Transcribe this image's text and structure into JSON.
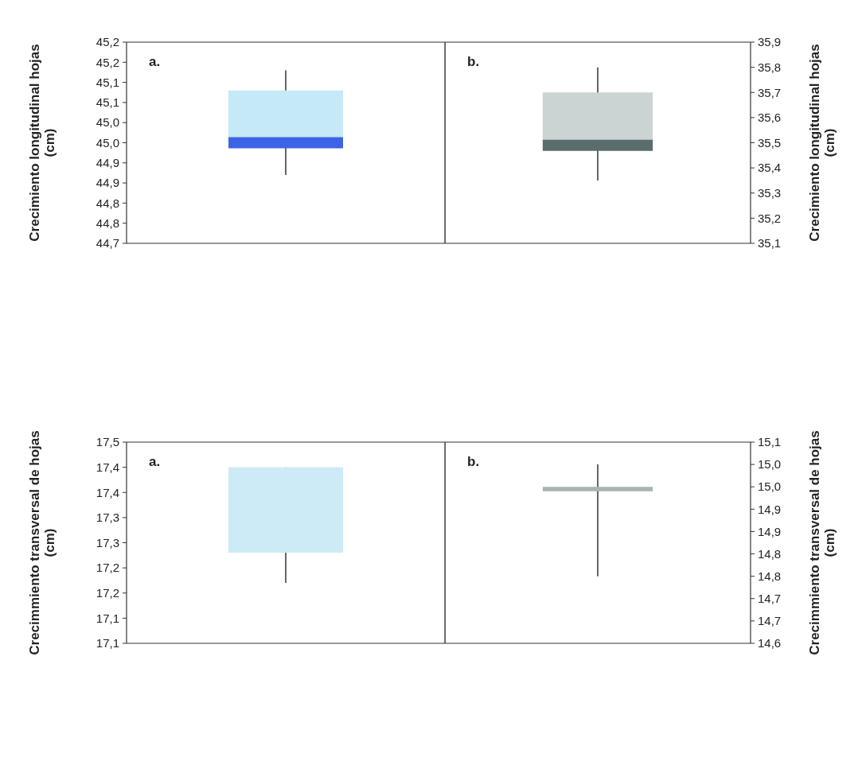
{
  "chart_data": [
    {
      "type": "box",
      "categories": [
        null
      ],
      "ylabel": "Crecimiento longitudinal hojas (cm)",
      "annotations": [
        "a."
      ],
      "ylim": [
        44.7,
        45.2
      ],
      "yticks": [
        {
          "value": 44.7,
          "label": "44,7"
        },
        {
          "value": 44.75,
          "label": "44,8"
        },
        {
          "value": 44.8,
          "label": "44,8"
        },
        {
          "value": 44.85,
          "label": "44,9"
        },
        {
          "value": 44.9,
          "label": "44,9"
        },
        {
          "value": 44.95,
          "label": "45,0"
        },
        {
          "value": 45.0,
          "label": "45,0"
        },
        {
          "value": 45.05,
          "label": "45,1"
        },
        {
          "value": 45.1,
          "label": "45,1"
        },
        {
          "value": 45.15,
          "label": "45,2"
        },
        {
          "value": 45.2,
          "label": "45,2"
        }
      ],
      "series": [
        {
          "color": "#c6e9f8",
          "boxes": [
            {
              "low": 44.87,
              "q1": 44.94,
              "median": 44.95,
              "q3": 45.08,
              "high": 45.13
            }
          ]
        }
      ]
    },
    {
      "type": "box",
      "categories": [
        null
      ],
      "ylabel": "Crecimiento longitudinal hojas (cm)",
      "annotations": [
        "b."
      ],
      "ylim": [
        35.1,
        35.9
      ],
      "yticks": [
        {
          "value": 35.1,
          "label": "35,1"
        },
        {
          "value": 35.2,
          "label": "35,2"
        },
        {
          "value": 35.3,
          "label": "35,3"
        },
        {
          "value": 35.4,
          "label": "35,4"
        },
        {
          "value": 35.5,
          "label": "35,5"
        },
        {
          "value": 35.6,
          "label": "35,6"
        },
        {
          "value": 35.7,
          "label": "35,7"
        },
        {
          "value": 35.8,
          "label": "35,8"
        },
        {
          "value": 35.9,
          "label": "35,9"
        }
      ],
      "series": [
        {
          "color": "#cbd3d3",
          "boxes": [
            {
              "low": 35.35,
              "q1": 35.47,
              "median": 35.49,
              "q3": 35.7,
              "high": 35.8
            }
          ]
        }
      ]
    },
    {
      "type": "box",
      "categories": [
        null
      ],
      "ylabel": "Crecimmiento transversal de hojas (cm)",
      "annotations": [
        "a."
      ],
      "ylim": [
        17.1,
        17.5
      ],
      "yticks": [
        {
          "value": 17.1,
          "label": "17,1"
        },
        {
          "value": 17.15,
          "label": "17,1"
        },
        {
          "value": 17.2,
          "label": "17,2"
        },
        {
          "value": 17.25,
          "label": "17,2"
        },
        {
          "value": 17.3,
          "label": "17,3"
        },
        {
          "value": 17.35,
          "label": "17,3"
        },
        {
          "value": 17.4,
          "label": "17,4"
        },
        {
          "value": 17.45,
          "label": "17,4"
        },
        {
          "value": 17.5,
          "label": "17,5"
        }
      ],
      "series": [
        {
          "color": "#cdebf6",
          "boxes": [
            {
              "low": 17.22,
              "q1": 17.28,
              "median": 17.28,
              "q3": 17.45,
              "high": 17.45
            }
          ]
        }
      ]
    },
    {
      "type": "box",
      "categories": [
        null
      ],
      "ylabel": "Crecimmiento transversal de hojas (cm)",
      "annotations": [
        "b."
      ],
      "ylim": [
        14.65,
        15.1
      ],
      "yticks": [
        {
          "value": 14.65,
          "label": "14,6"
        },
        {
          "value": 14.7,
          "label": "14,7"
        },
        {
          "value": 14.75,
          "label": "14,7"
        },
        {
          "value": 14.8,
          "label": "14,8"
        },
        {
          "value": 14.85,
          "label": "14,8"
        },
        {
          "value": 14.9,
          "label": "14,9"
        },
        {
          "value": 14.95,
          "label": "14,9"
        },
        {
          "value": 15.0,
          "label": "15,0"
        },
        {
          "value": 15.05,
          "label": "15,0"
        },
        {
          "value": 15.1,
          "label": "15,1"
        }
      ],
      "series": [
        {
          "color": "#a9b5b3",
          "boxes": [
            {
              "low": 14.8,
              "q1": 14.99,
              "median": 14.99,
              "q3": 15.0,
              "high": 15.05
            }
          ]
        }
      ]
    }
  ]
}
